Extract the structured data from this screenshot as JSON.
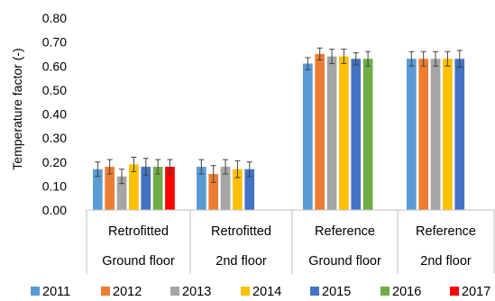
{
  "chart_data": {
    "type": "bar",
    "title": "",
    "xlabel": "",
    "ylabel": "Temperature factor (-)",
    "ylim": [
      0,
      0.8
    ],
    "yticks": [
      "0.00",
      "0.10",
      "0.20",
      "0.30",
      "0.40",
      "0.50",
      "0.60",
      "0.70",
      "0.80"
    ],
    "grid": false,
    "legend_position": "bottom",
    "categories": [
      {
        "line1": "Retrofitted",
        "line2": "Ground floor"
      },
      {
        "line1": "Retrofitted",
        "line2": "2nd floor"
      },
      {
        "line1": "Reference",
        "line2": "Ground floor"
      },
      {
        "line1": "Reference",
        "line2": "2nd floor"
      }
    ],
    "series": [
      {
        "name": "2011",
        "color": "#5b9bd5",
        "values": [
          0.17,
          0.18,
          0.61,
          0.63
        ],
        "errors": [
          0.03,
          0.03,
          0.025,
          0.03
        ]
      },
      {
        "name": "2012",
        "color": "#ed7d31",
        "values": [
          0.18,
          0.15,
          0.65,
          0.63
        ],
        "errors": [
          0.03,
          0.035,
          0.025,
          0.03
        ]
      },
      {
        "name": "2013",
        "color": "#a5a5a5",
        "values": [
          0.14,
          0.18,
          0.64,
          0.63
        ],
        "errors": [
          0.03,
          0.03,
          0.03,
          0.03
        ]
      },
      {
        "name": "2014",
        "color": "#ffc000",
        "values": [
          0.19,
          0.17,
          0.64,
          0.63
        ],
        "errors": [
          0.03,
          0.035,
          0.03,
          0.03
        ]
      },
      {
        "name": "2015",
        "color": "#4472c4",
        "values": [
          0.18,
          0.17,
          0.63,
          0.63
        ],
        "errors": [
          0.035,
          0.03,
          0.025,
          0.035
        ]
      },
      {
        "name": "2016",
        "color": "#70ad47",
        "values": [
          0.18,
          null,
          0.63,
          null
        ],
        "errors": [
          0.03,
          null,
          0.03,
          null
        ]
      },
      {
        "name": "2017",
        "color": "#ff0000",
        "values": [
          0.18,
          null,
          null,
          null
        ],
        "errors": [
          0.03,
          null,
          null,
          null
        ]
      }
    ]
  }
}
